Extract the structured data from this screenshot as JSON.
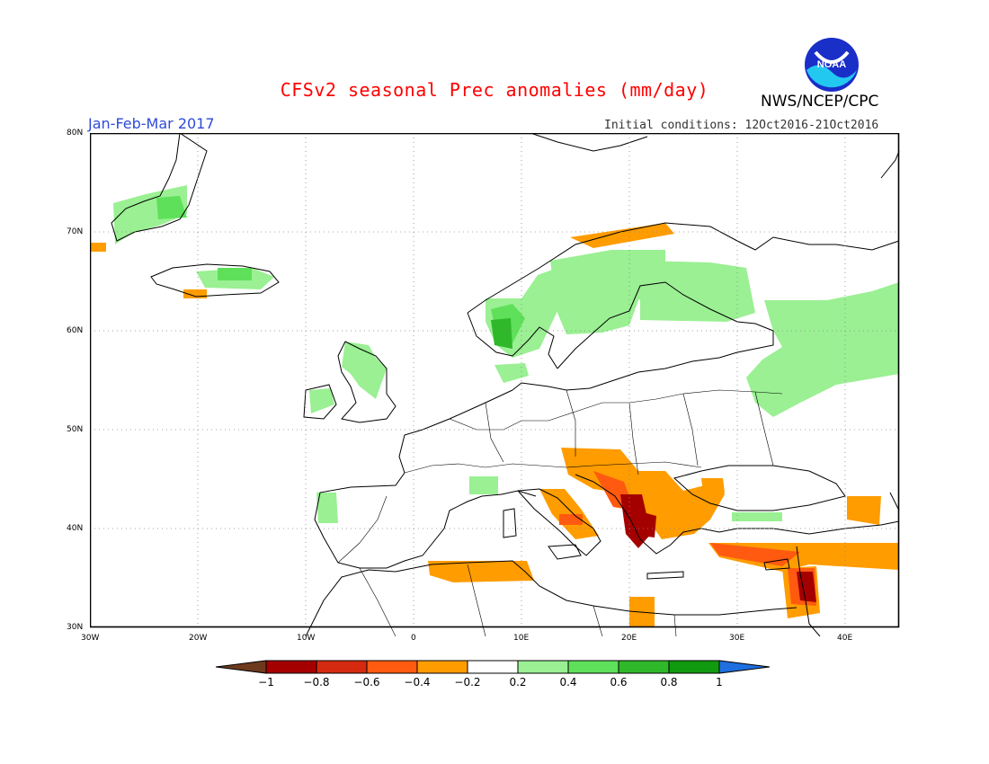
{
  "header": {
    "title": "CFSv2 seasonal Prec anomalies (mm/day)",
    "season": "Jan-Feb-Mar 2017",
    "initial_conditions": "Initial conditions: 12Oct2016-21Oct2016",
    "agency": "NWS/NCEP/CPC",
    "logo_text": "NOAA"
  },
  "map": {
    "lon_range": [
      -30,
      45
    ],
    "lat_range": [
      30,
      80
    ],
    "lat_labels": [
      "30N",
      "40N",
      "50N",
      "60N",
      "70N",
      "80N"
    ],
    "lon_labels": [
      "30W",
      "20W",
      "10W",
      "0",
      "10E",
      "20E",
      "30E",
      "40E"
    ]
  },
  "legend": {
    "tick_labels": [
      "-1",
      "-0.8",
      "-0.6",
      "-0.4",
      "-0.2",
      "0.2",
      "0.4",
      "0.6",
      "0.8",
      "1"
    ],
    "colors": [
      "#6e3a1e",
      "#a50000",
      "#d42a10",
      "#ff5a10",
      "#ff9c00",
      "#ffffff",
      "#9af093",
      "#5fe05a",
      "#2fb82a",
      "#109a10",
      "#1f6fe0"
    ]
  },
  "anomalies": {
    "positive": [
      {
        "region": "Southern Greenland coast",
        "value": 0.2
      },
      {
        "region": "Iceland",
        "value": 0.2
      },
      {
        "region": "Western Norway",
        "value": 0.4
      },
      {
        "region": "Southwest Norway",
        "value": 0.6
      },
      {
        "region": "Sweden and Finland",
        "value": 0.2
      },
      {
        "region": "Western Russia",
        "value": 0.2
      },
      {
        "region": "Ireland and Scotland",
        "value": 0.2
      },
      {
        "region": "Northwest Iberia",
        "value": 0.2
      },
      {
        "region": "Western Alps",
        "value": 0.2
      }
    ],
    "negative": [
      {
        "region": "Balkans",
        "value": -0.4
      },
      {
        "region": "Albania and western Greece",
        "value": -0.8
      },
      {
        "region": "Southern Italy",
        "value": -0.4
      },
      {
        "region": "Algeria and Tunisia coast",
        "value": -0.2
      },
      {
        "region": "Southern Turkey",
        "value": -0.4
      },
      {
        "region": "Levant",
        "value": -0.6
      },
      {
        "region": "Northern Norway coast",
        "value": -0.2
      }
    ]
  }
}
